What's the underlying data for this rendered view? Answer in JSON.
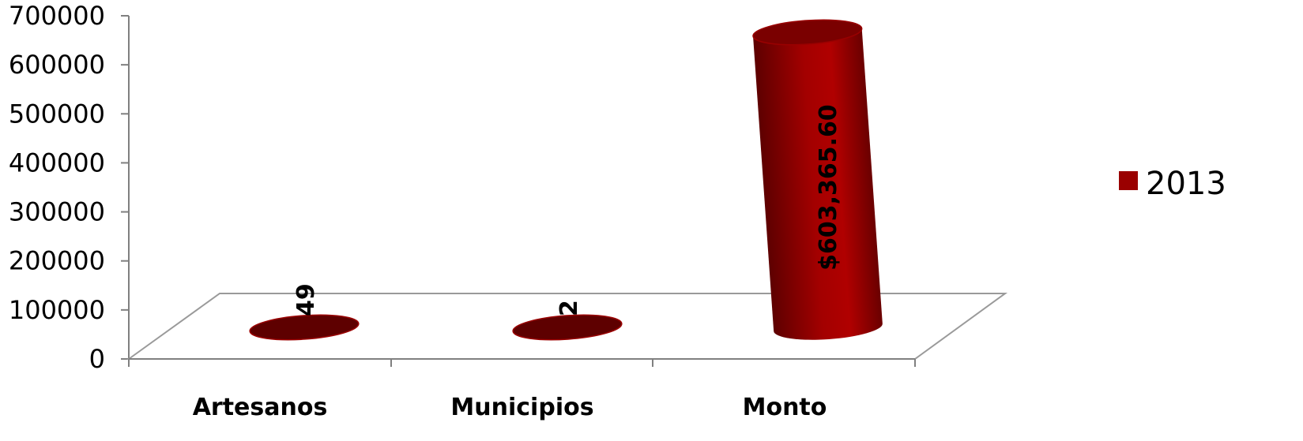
{
  "chart_data": {
    "type": "bar",
    "categories": [
      "Artesanos",
      "Municipios",
      "Monto"
    ],
    "series": [
      {
        "name": "2013",
        "values": [
          49,
          2,
          603365.6
        ],
        "labels": [
          "49",
          "2",
          "$603,365.60"
        ]
      }
    ],
    "yticks": [
      "0",
      "100000",
      "200000",
      "300000",
      "400000",
      "500000",
      "600000",
      "700000"
    ],
    "ylim": [
      0,
      700000
    ],
    "grid": false,
    "legend": "right",
    "colors": {
      "bar": "#9a0000",
      "bar_dark": "#5e0000",
      "bar_top": "#7a0000"
    }
  }
}
